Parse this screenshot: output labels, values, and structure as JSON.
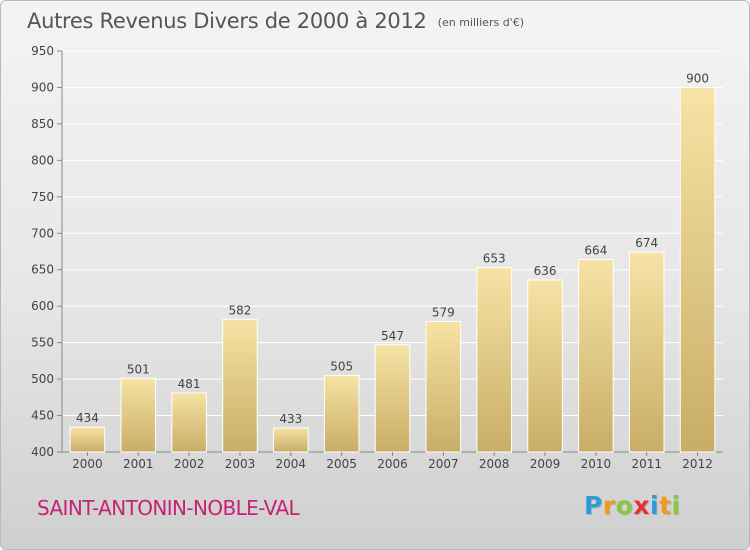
{
  "header": {
    "title": "Autres Revenus Divers de 2000 à 2012",
    "unit": "(en milliers d'€)"
  },
  "commune": "SAINT-ANTONIN-NOBLE-VAL",
  "brand": {
    "name": "Proxiti",
    "letters": [
      "P",
      "r",
      "o",
      "x",
      "i",
      "t",
      "i"
    ],
    "colors": [
      "#2f9ad8",
      "#f29a1e",
      "#8cc63f",
      "#e8303a",
      "#2f9ad8",
      "#f29a1e",
      "#8cc63f"
    ]
  },
  "colors": {
    "bar_light": "#f7e3a5",
    "bar_dark": "#c8ad66",
    "grid": "#ffffff",
    "text": "#444444",
    "title": "#555555",
    "commune": "#c62273"
  },
  "chart_data": {
    "type": "bar",
    "title": "Autres Revenus Divers de 2000 à 2012",
    "subtitle": "(en milliers d'€)",
    "xlabel": "",
    "ylabel": "",
    "categories": [
      "2000",
      "2001",
      "2002",
      "2003",
      "2004",
      "2005",
      "2006",
      "2007",
      "2008",
      "2009",
      "2010",
      "2011",
      "2012"
    ],
    "values": [
      434,
      501,
      481,
      582,
      433,
      505,
      547,
      579,
      653,
      636,
      664,
      674,
      900
    ],
    "value_labels": [
      "434",
      "501",
      "481",
      "582",
      "433",
      "505",
      "547",
      "579",
      "653",
      "636",
      "664",
      "674",
      "900"
    ],
    "ylim": [
      400,
      950
    ],
    "yticks": [
      400,
      450,
      500,
      550,
      600,
      650,
      700,
      750,
      800,
      850,
      900,
      950
    ],
    "ytick_labels": [
      "400",
      "450",
      "500",
      "550",
      "600",
      "650",
      "700",
      "750",
      "800",
      "850",
      "900",
      "950"
    ],
    "grid": true,
    "legend": "none"
  }
}
